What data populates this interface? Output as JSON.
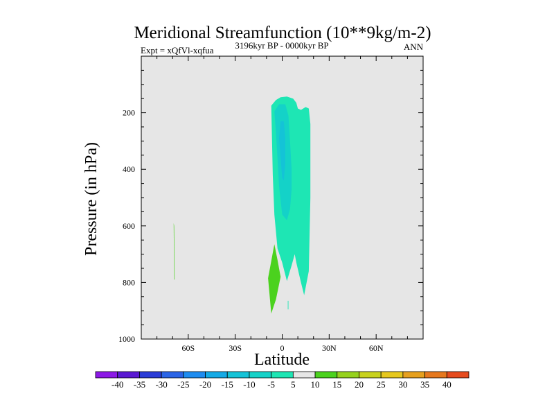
{
  "chart_data": {
    "type": "contour",
    "title": "Meridional Streamfunction (10**9kg/m-2)",
    "left_label": "Expt = xQfVl-xqfua",
    "center_label": "3196kyr BP - 0000kyr BP",
    "right_label": "ANN",
    "xlabel": "Latitude",
    "ylabel": "Pressure (in hPa)",
    "xlim": [
      -90,
      90
    ],
    "ylim": [
      1000,
      0
    ],
    "x_ticks": [
      {
        "value": -60,
        "label": "60S"
      },
      {
        "value": -30,
        "label": "30S"
      },
      {
        "value": 0,
        "label": "0"
      },
      {
        "value": 30,
        "label": "30N"
      },
      {
        "value": 60,
        "label": "60N"
      }
    ],
    "y_ticks": [
      {
        "value": 200,
        "label": "200"
      },
      {
        "value": 400,
        "label": "400"
      },
      {
        "value": 600,
        "label": "600"
      },
      {
        "value": 800,
        "label": "800"
      },
      {
        "value": 1000,
        "label": "1000"
      }
    ],
    "background_color": "#e6e6e6",
    "contour_levels": [
      -40,
      -35,
      -30,
      -25,
      -20,
      -15,
      -10,
      -5,
      5,
      10,
      15,
      20,
      25,
      30,
      35,
      40
    ],
    "colorbar_colors": [
      "#8c19e6",
      "#5a19d2",
      "#2a3cd7",
      "#2a64e6",
      "#1e8cf0",
      "#14aae6",
      "#14c3d7",
      "#14d2c8",
      "#1ee6b4",
      "#e6e6e6",
      "#4bd21e",
      "#96d21e",
      "#c8d21e",
      "#e6c81e",
      "#e6a01e",
      "#e6781e",
      "#e64b1e"
    ],
    "colorbar_labels": [
      "-40",
      "-35",
      "-30",
      "-25",
      "-20",
      "-15",
      "-10",
      "-5",
      "5",
      "10",
      "15",
      "20",
      "25",
      "30",
      "35",
      "40"
    ],
    "regions": [
      {
        "name": "negative-cell-outer",
        "range": "-10 to -5",
        "color": "#1ee6b4",
        "lat": [
          -7,
          -4,
          -1,
          3,
          7,
          9,
          10,
          12,
          15,
          17,
          18,
          18,
          17,
          14,
          12,
          9,
          8,
          6,
          3,
          0,
          -3,
          -5,
          -6,
          -7
        ],
        "p": [
          175,
          155,
          145,
          143,
          150,
          165,
          185,
          190,
          180,
          185,
          240,
          500,
          760,
          845,
          800,
          730,
          700,
          740,
          795,
          730,
          680,
          560,
          420,
          175
        ]
      },
      {
        "name": "negative-cell-inner",
        "range": "-15 to -10",
        "color": "#14d2c8",
        "lat": [
          -5,
          -2,
          2,
          4,
          5,
          6,
          6,
          5,
          3,
          0,
          -2,
          -3,
          -4,
          -5
        ],
        "p": [
          195,
          170,
          170,
          210,
          300,
          400,
          470,
          540,
          580,
          560,
          460,
          360,
          270,
          195
        ]
      },
      {
        "name": "negative-cell-core",
        "range": "-20 to -15",
        "color": "#14c3d7",
        "lat": [
          -1,
          1,
          2,
          2,
          1,
          0,
          -1,
          -2,
          -1
        ],
        "p": [
          230,
          230,
          290,
          380,
          440,
          430,
          360,
          290,
          230
        ]
      },
      {
        "name": "positive-cell-tropics",
        "range": "5 to 10",
        "color": "#4bd21e",
        "lat": [
          -5,
          -3,
          -1,
          -4,
          -7,
          -9,
          -5
        ],
        "p": [
          665,
          720,
          780,
          860,
          910,
          785,
          665
        ]
      },
      {
        "name": "positive-cell-southern",
        "range": "5 to 10",
        "color": "#4bd21e",
        "lat": [
          -69.3,
          -69.0,
          -68.7,
          -69.0,
          -69.3
        ],
        "p": [
          590,
          600,
          790,
          790,
          590
        ]
      },
      {
        "name": "negative-fleck",
        "range": "-10 to -5",
        "color": "#1ee6b4",
        "lat": [
          3.6,
          4.0,
          4.0,
          3.6,
          3.6
        ],
        "p": [
          865,
          865,
          895,
          895,
          865
        ]
      }
    ]
  }
}
